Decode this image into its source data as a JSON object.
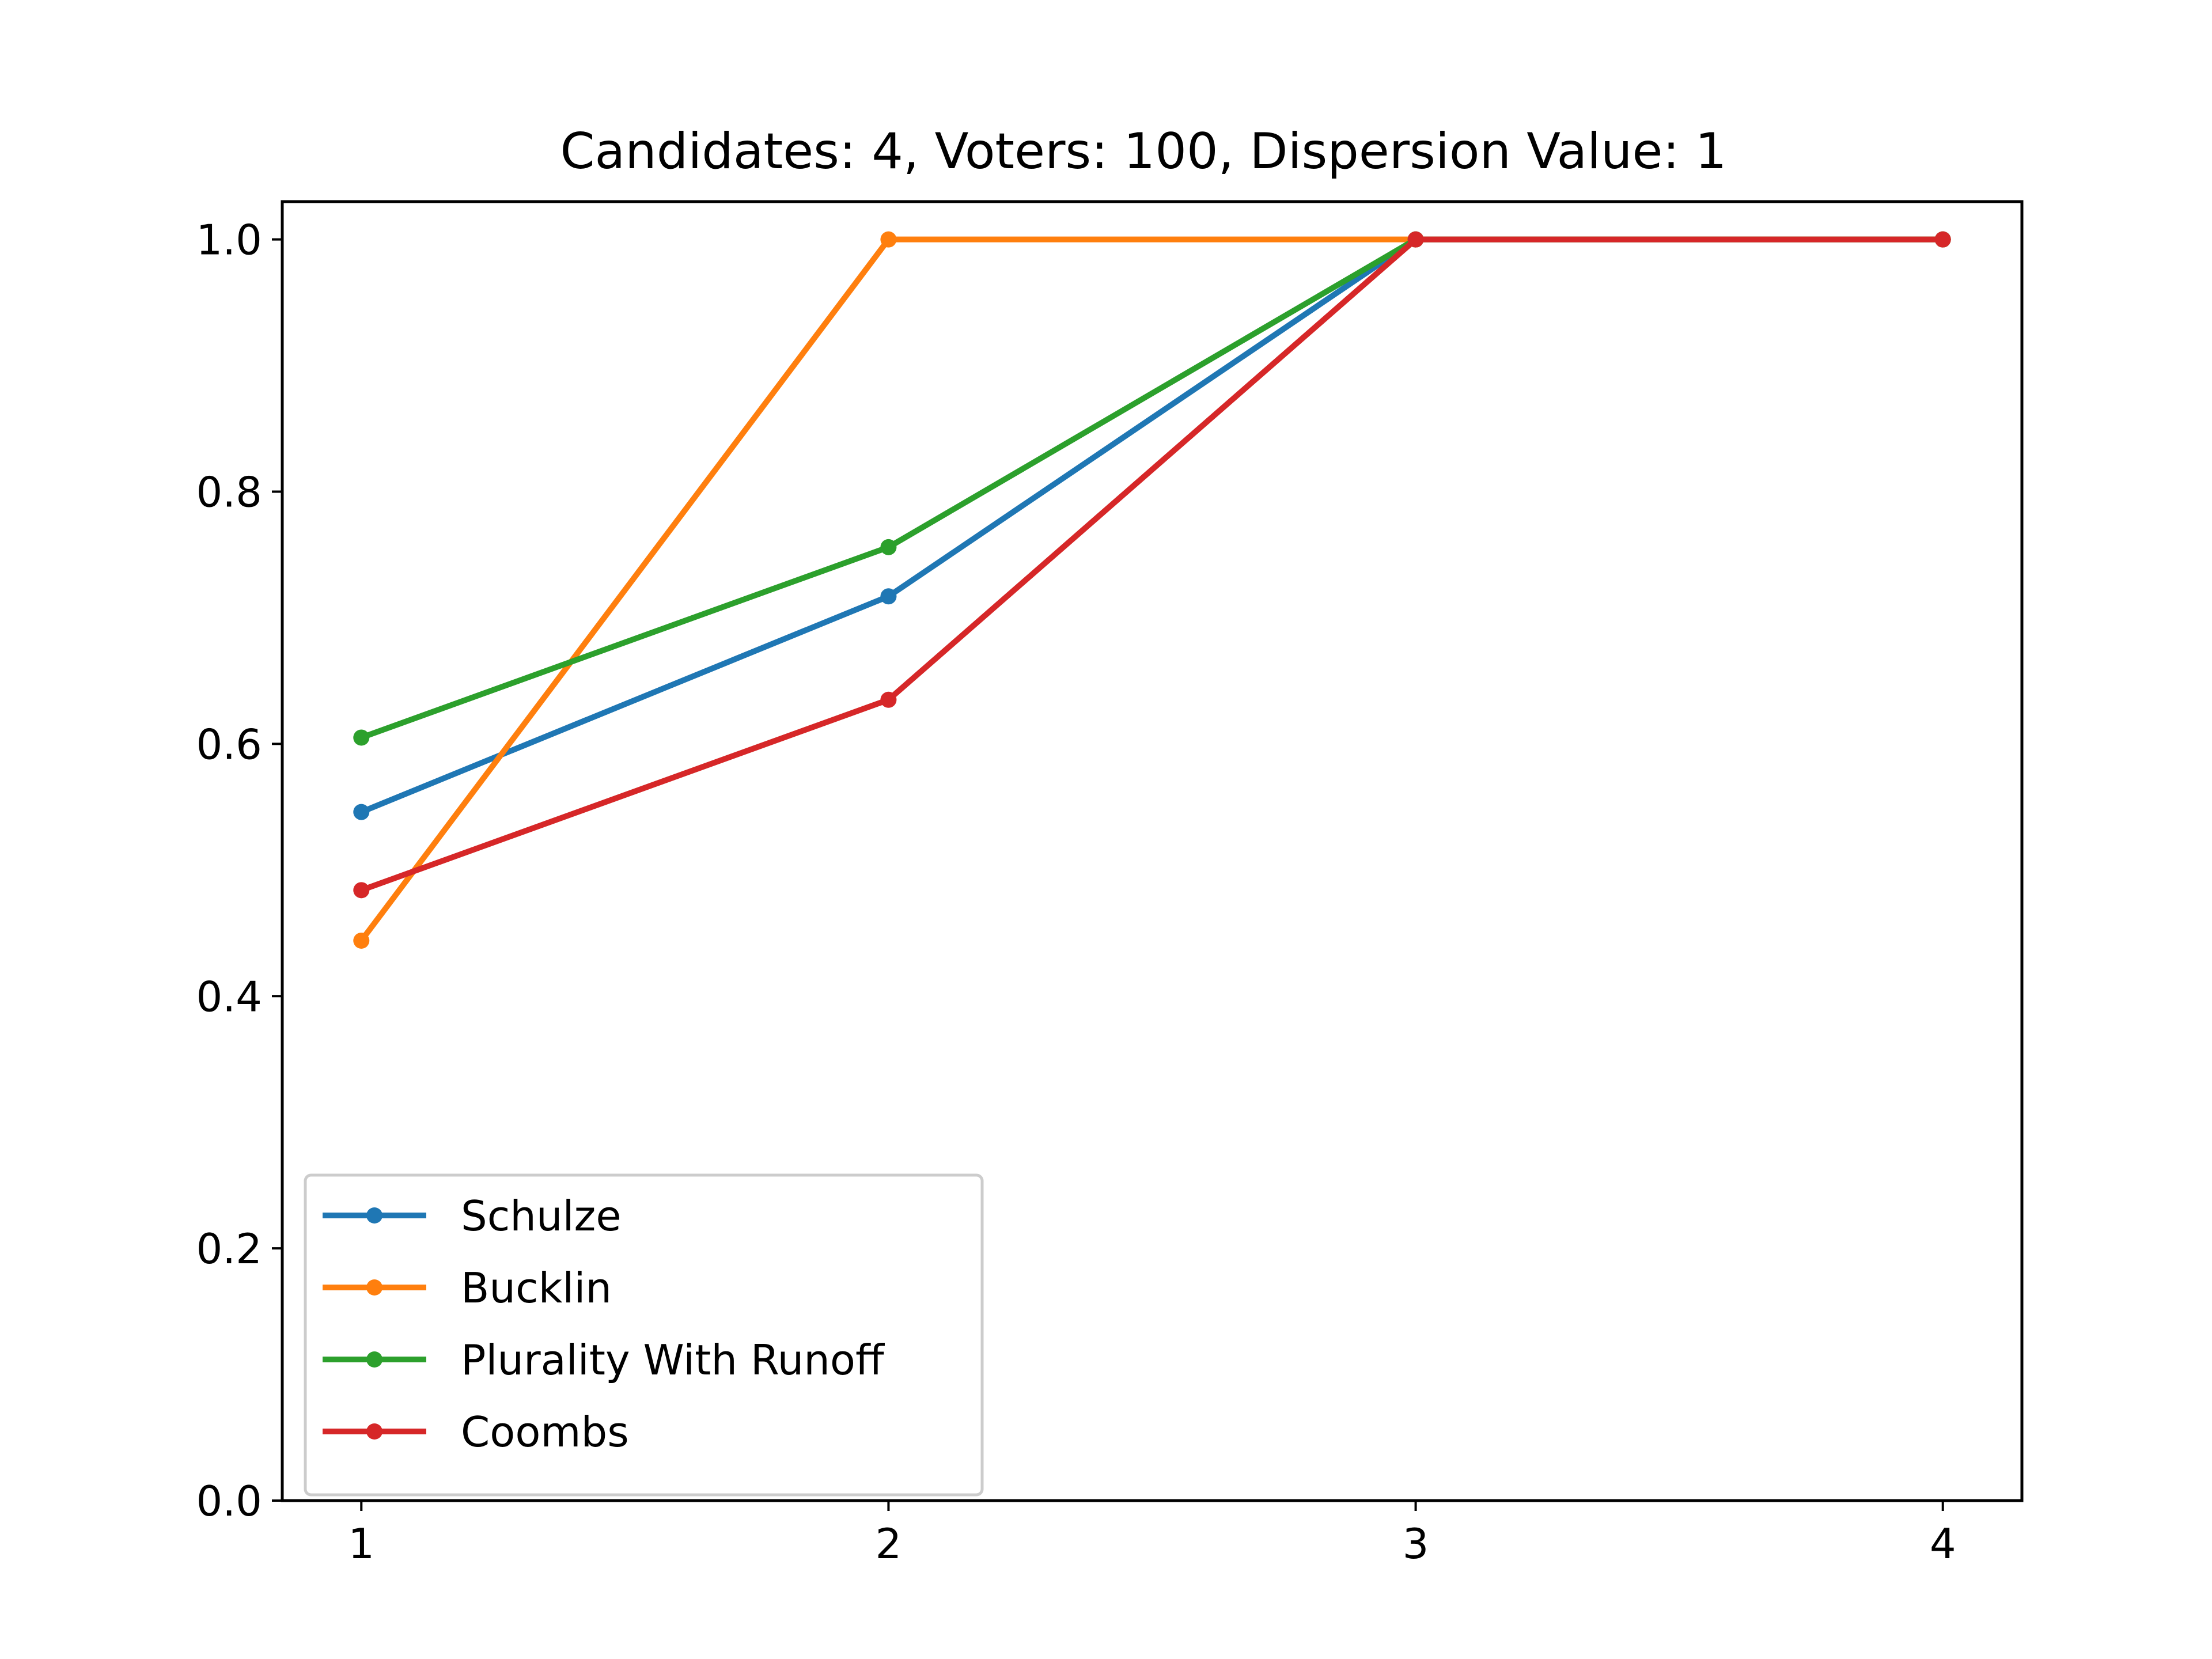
{
  "chart_data": {
    "type": "line",
    "title": "Candidates: 4, Voters: 100, Dispersion Value: 1",
    "xlabel": "",
    "ylabel": "",
    "x": [
      1,
      2,
      3,
      4
    ],
    "xticks": [
      "1",
      "2",
      "3",
      "4"
    ],
    "yticks": [
      "0.0",
      "0.2",
      "0.4",
      "0.6",
      "0.8",
      "1.0"
    ],
    "xlim": [
      0.85,
      4.15
    ],
    "ylim": [
      0.0,
      1.03
    ],
    "grid": false,
    "legend_position": "lower-left",
    "series": [
      {
        "name": "Schulze",
        "color": "#1f77b4",
        "values": [
          0.546,
          0.717,
          1.0,
          1.0
        ]
      },
      {
        "name": "Bucklin",
        "color": "#ff7f0e",
        "values": [
          0.444,
          1.0,
          1.0,
          1.0
        ]
      },
      {
        "name": "Plurality With Runoff",
        "color": "#2ca02c",
        "values": [
          0.605,
          0.756,
          1.0,
          1.0
        ]
      },
      {
        "name": "Coombs",
        "color": "#d62728",
        "values": [
          0.484,
          0.635,
          1.0,
          1.0
        ]
      }
    ]
  }
}
